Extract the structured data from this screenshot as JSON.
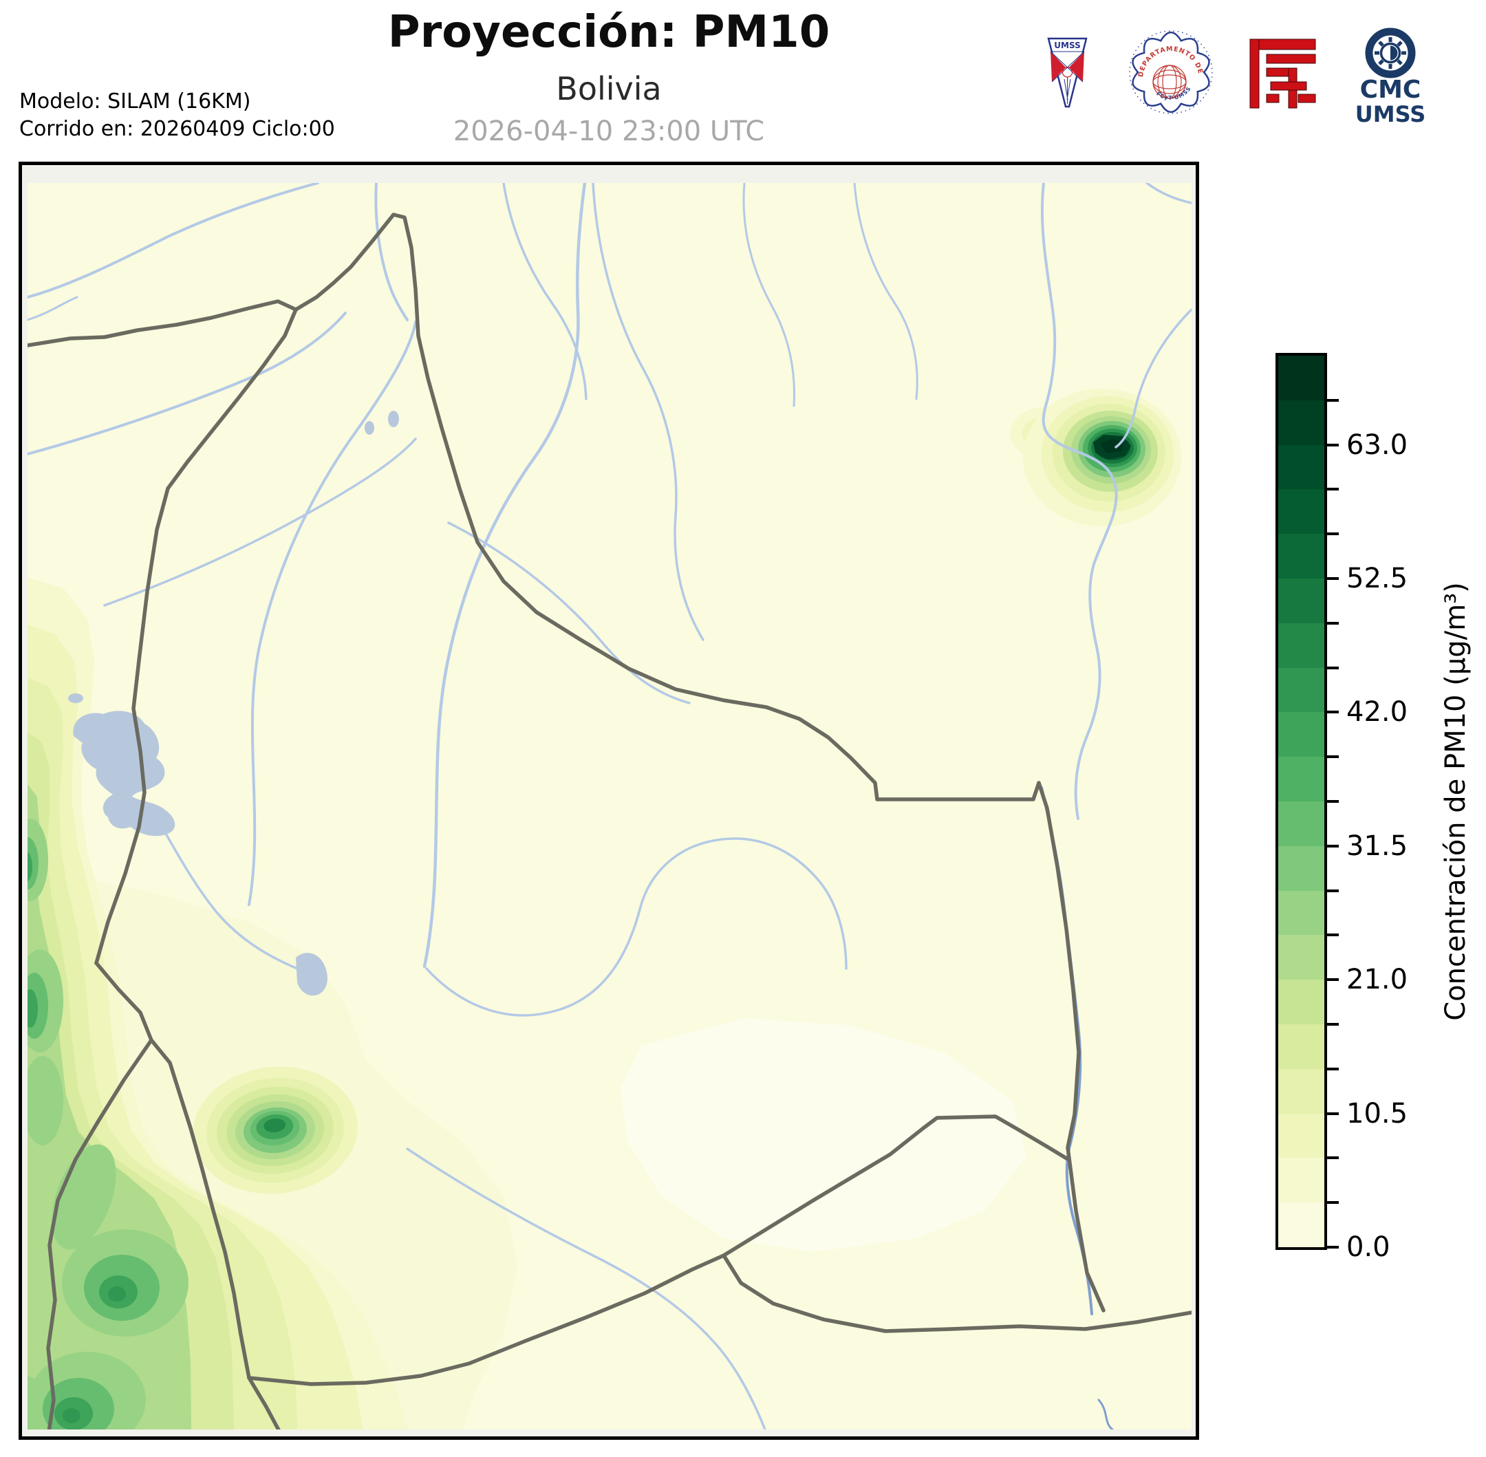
{
  "header": {
    "title": "Proyección: PM10",
    "subtitle": "Bolivia",
    "timestamp": "2026-04-10 23:00 UTC",
    "model_line1": "Modelo: SILAM (16KM)",
    "model_line2": "Corrido en: 20260409 Ciclo:00"
  },
  "logos": {
    "umss_shield_label": "UMSS",
    "physics_seal_top": "DEPARTAMENTO DE FÍSICA",
    "physics_seal_bottom": "FCyT-UMSS",
    "cmc_line1": "CMC",
    "cmc_line2": "UMSS"
  },
  "colorbar": {
    "label": "Concentración de PM10 (µg/m³)",
    "min": 0,
    "max": 70,
    "step": 3.5,
    "tick_values": [
      0,
      10.5,
      21,
      31.5,
      42,
      52.5,
      63
    ],
    "tick_labels": [
      "0.0",
      "10.5",
      "21.0",
      "31.5",
      "42.0",
      "52.5",
      "63.0"
    ],
    "levels": [
      "#fbfbdf",
      "#f6f8cd",
      "#eff5bb",
      "#e5f1ac",
      "#d8eb9f",
      "#c6e494",
      "#b0db8c",
      "#98d285",
      "#7fc87c",
      "#66bd6f",
      "#4fb163",
      "#3da45a",
      "#2f9751",
      "#238948",
      "#17793f",
      "#0b6a37",
      "#045c30",
      "#014e2a",
      "#004023",
      "#00331c"
    ]
  },
  "chart_data": {
    "type": "heatmap",
    "title": "Proyección: PM10 — Bolivia — 2026-04-10 23:00 UTC",
    "units": "µg/m³",
    "scale_min": 0,
    "scale_max": 70,
    "contour_interval": 3.5,
    "legend_position": "right",
    "notable_features": [
      {
        "name": "intense-hotspot-northeast",
        "approx_value": 68
      },
      {
        "name": "hotspot-altiplano-oruro",
        "approx_value": 44
      },
      {
        "name": "andes-western-band",
        "approx_value": 33
      },
      {
        "name": "background-field",
        "approx_value": 3
      }
    ]
  },
  "colors": {
    "title_color": "#0d0d0d",
    "timestamp_color": "#a8a8a8",
    "frame": "#000000",
    "axes_bg": "#f1f2ec",
    "river": "#b3c9e6",
    "river_dark": "#7f9fd0",
    "border": "#6a6a60",
    "lake": "#b7c8dc",
    "cream": "#fcfdec",
    "navy": "#1b3a66",
    "logo_red": "#cc1016",
    "seal_blue": "#2a3f8f",
    "seal_red": "#c23a33",
    "pennant_blue": "#27348b",
    "pennant_red": "#cf1f2f"
  }
}
